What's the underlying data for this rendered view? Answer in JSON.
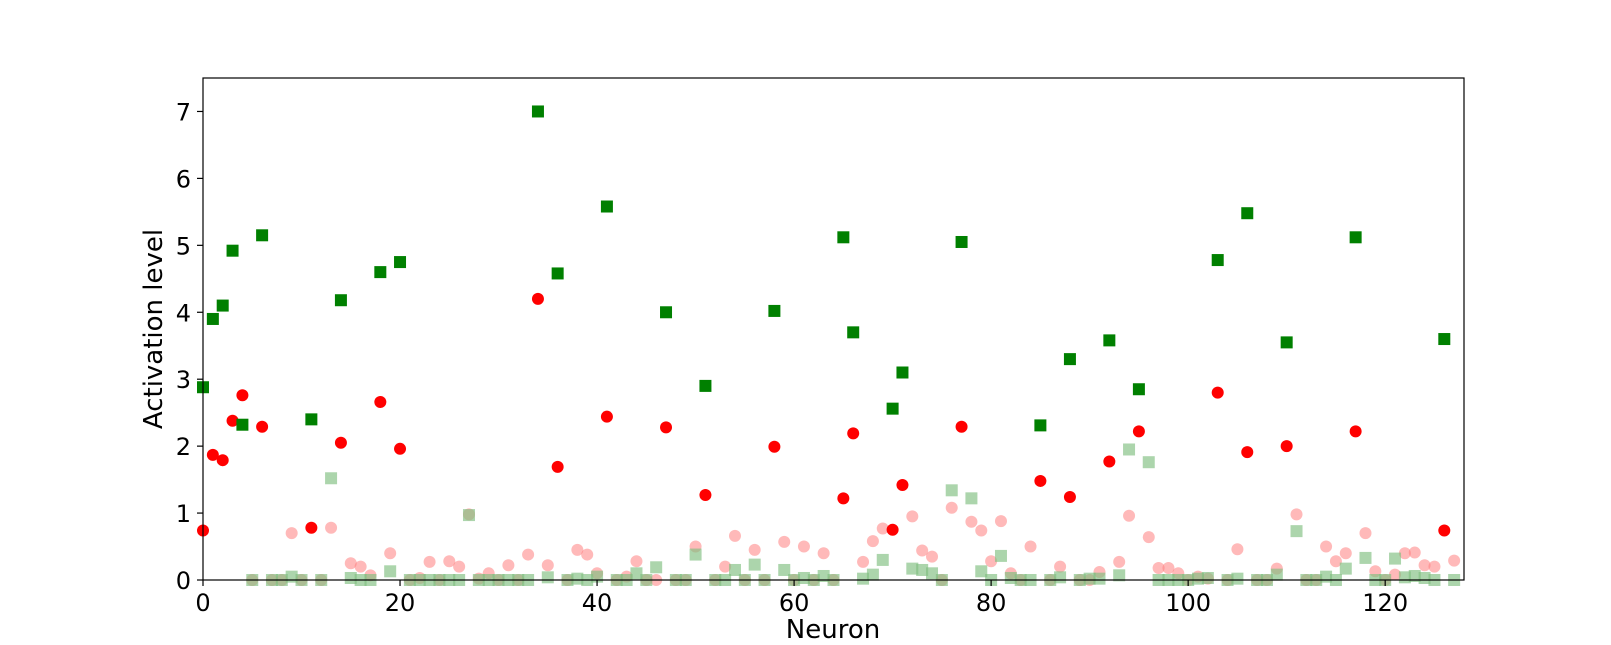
{
  "chart_data": {
    "type": "scatter",
    "title": "",
    "xlabel": "Neuron",
    "ylabel": "Activation level",
    "xlim": [
      0,
      128
    ],
    "ylim": [
      0,
      7.5
    ],
    "xticks": [
      0,
      20,
      40,
      60,
      80,
      100,
      120
    ],
    "yticks": [
      0,
      1,
      2,
      3,
      4,
      5,
      6,
      7
    ],
    "grid": false,
    "series": [
      {
        "marker": "square",
        "color": "#008000",
        "opacity": 1.0,
        "points": [
          [
            0,
            2.88
          ],
          [
            1,
            3.9
          ],
          [
            2,
            4.1
          ],
          [
            3,
            4.92
          ],
          [
            4,
            2.32
          ],
          [
            6,
            5.15
          ],
          [
            11,
            2.4
          ],
          [
            14,
            4.18
          ],
          [
            18,
            4.6
          ],
          [
            20,
            4.75
          ],
          [
            34,
            7.0
          ],
          [
            36,
            4.58
          ],
          [
            41,
            5.58
          ],
          [
            47,
            4.0
          ],
          [
            51,
            2.9
          ],
          [
            58,
            4.02
          ],
          [
            65,
            5.12
          ],
          [
            66,
            3.7
          ],
          [
            70,
            2.56
          ],
          [
            71,
            3.1
          ],
          [
            77,
            5.05
          ],
          [
            85,
            2.31
          ],
          [
            88,
            3.3
          ],
          [
            92,
            3.58
          ],
          [
            95,
            2.85
          ],
          [
            103,
            4.78
          ],
          [
            106,
            5.48
          ],
          [
            110,
            3.55
          ],
          [
            117,
            5.12
          ],
          [
            126,
            3.6
          ]
        ]
      },
      {
        "marker": "circle",
        "color": "#ff0000",
        "opacity": 1.0,
        "points": [
          [
            0,
            0.74
          ],
          [
            1,
            1.87
          ],
          [
            2,
            1.79
          ],
          [
            3,
            2.38
          ],
          [
            4,
            2.76
          ],
          [
            6,
            2.29
          ],
          [
            11,
            0.78
          ],
          [
            14,
            2.05
          ],
          [
            18,
            2.66
          ],
          [
            20,
            1.96
          ],
          [
            34,
            4.2
          ],
          [
            36,
            1.69
          ],
          [
            41,
            2.44
          ],
          [
            47,
            2.28
          ],
          [
            51,
            1.27
          ],
          [
            58,
            1.99
          ],
          [
            65,
            1.22
          ],
          [
            66,
            2.19
          ],
          [
            70,
            0.75
          ],
          [
            71,
            1.42
          ],
          [
            77,
            2.29
          ],
          [
            85,
            1.48
          ],
          [
            88,
            1.24
          ],
          [
            92,
            1.77
          ],
          [
            95,
            2.22
          ],
          [
            103,
            2.8
          ],
          [
            106,
            1.91
          ],
          [
            110,
            2.0
          ],
          [
            117,
            2.22
          ],
          [
            126,
            0.74
          ]
        ]
      },
      {
        "marker": "circle",
        "color": "#ff7f7f",
        "opacity": 0.55,
        "points": [
          [
            5,
            0.0
          ],
          [
            7,
            0.0
          ],
          [
            8,
            0.0
          ],
          [
            9,
            0.7
          ],
          [
            10,
            0.0
          ],
          [
            12,
            0.0
          ],
          [
            13,
            0.78
          ],
          [
            15,
            0.25
          ],
          [
            16,
            0.2
          ],
          [
            17,
            0.07
          ],
          [
            19,
            0.4
          ],
          [
            21,
            0.0
          ],
          [
            22,
            0.03
          ],
          [
            23,
            0.27
          ],
          [
            24,
            0.0
          ],
          [
            25,
            0.28
          ],
          [
            26,
            0.2
          ],
          [
            27,
            0.98
          ],
          [
            28,
            0.02
          ],
          [
            29,
            0.1
          ],
          [
            30,
            0.0
          ],
          [
            31,
            0.22
          ],
          [
            32,
            0.0
          ],
          [
            33,
            0.38
          ],
          [
            35,
            0.22
          ],
          [
            37,
            0.0
          ],
          [
            38,
            0.45
          ],
          [
            39,
            0.38
          ],
          [
            40,
            0.1
          ],
          [
            42,
            0.0
          ],
          [
            43,
            0.05
          ],
          [
            44,
            0.28
          ],
          [
            45,
            0.0
          ],
          [
            46,
            0.0
          ],
          [
            48,
            0.0
          ],
          [
            49,
            0.0
          ],
          [
            50,
            0.5
          ],
          [
            52,
            0.0
          ],
          [
            53,
            0.2
          ],
          [
            54,
            0.66
          ],
          [
            55,
            0.0
          ],
          [
            56,
            0.45
          ],
          [
            57,
            0.0
          ],
          [
            59,
            0.57
          ],
          [
            60,
            0.0
          ],
          [
            61,
            0.5
          ],
          [
            62,
            0.0
          ],
          [
            63,
            0.4
          ],
          [
            64,
            0.0
          ],
          [
            67,
            0.27
          ],
          [
            68,
            0.58
          ],
          [
            69,
            0.77
          ],
          [
            72,
            0.95
          ],
          [
            73,
            0.44
          ],
          [
            74,
            0.35
          ],
          [
            75,
            0.0
          ],
          [
            76,
            1.08
          ],
          [
            78,
            0.87
          ],
          [
            79,
            0.74
          ],
          [
            80,
            0.28
          ],
          [
            81,
            0.88
          ],
          [
            82,
            0.1
          ],
          [
            83,
            0.0
          ],
          [
            84,
            0.5
          ],
          [
            86,
            0.0
          ],
          [
            87,
            0.2
          ],
          [
            89,
            0.0
          ],
          [
            90,
            0.0
          ],
          [
            91,
            0.12
          ],
          [
            93,
            0.27
          ],
          [
            94,
            0.96
          ],
          [
            96,
            0.64
          ],
          [
            97,
            0.18
          ],
          [
            98,
            0.18
          ],
          [
            99,
            0.1
          ],
          [
            100,
            0.0
          ],
          [
            101,
            0.05
          ],
          [
            102,
            0.02
          ],
          [
            104,
            0.0
          ],
          [
            105,
            0.46
          ],
          [
            107,
            0.0
          ],
          [
            108,
            0.0
          ],
          [
            109,
            0.17
          ],
          [
            111,
            0.98
          ],
          [
            112,
            0.0
          ],
          [
            113,
            0.0
          ],
          [
            114,
            0.5
          ],
          [
            115,
            0.28
          ],
          [
            116,
            0.4
          ],
          [
            118,
            0.7
          ],
          [
            119,
            0.13
          ],
          [
            120,
            0.0
          ],
          [
            121,
            0.08
          ],
          [
            122,
            0.4
          ],
          [
            123,
            0.41
          ],
          [
            124,
            0.22
          ],
          [
            125,
            0.2
          ],
          [
            127,
            0.29
          ]
        ]
      },
      {
        "marker": "square",
        "color": "#7fbf7f",
        "opacity": 0.65,
        "points": [
          [
            5,
            0.0
          ],
          [
            7,
            0.0
          ],
          [
            8,
            0.0
          ],
          [
            9,
            0.05
          ],
          [
            10,
            0.0
          ],
          [
            12,
            0.0
          ],
          [
            13,
            1.52
          ],
          [
            15,
            0.03
          ],
          [
            16,
            0.0
          ],
          [
            17,
            0.0
          ],
          [
            19,
            0.13
          ],
          [
            21,
            0.0
          ],
          [
            22,
            0.0
          ],
          [
            23,
            0.0
          ],
          [
            24,
            0.0
          ],
          [
            25,
            0.0
          ],
          [
            26,
            0.0
          ],
          [
            27,
            0.97
          ],
          [
            28,
            0.0
          ],
          [
            29,
            0.0
          ],
          [
            30,
            0.0
          ],
          [
            31,
            0.0
          ],
          [
            32,
            0.0
          ],
          [
            33,
            0.0
          ],
          [
            35,
            0.04
          ],
          [
            37,
            0.0
          ],
          [
            38,
            0.02
          ],
          [
            39,
            0.0
          ],
          [
            40,
            0.05
          ],
          [
            42,
            0.0
          ],
          [
            43,
            0.0
          ],
          [
            44,
            0.1
          ],
          [
            45,
            0.0
          ],
          [
            46,
            0.19
          ],
          [
            48,
            0.0
          ],
          [
            49,
            0.0
          ],
          [
            50,
            0.38
          ],
          [
            52,
            0.0
          ],
          [
            53,
            0.0
          ],
          [
            54,
            0.15
          ],
          [
            55,
            0.0
          ],
          [
            56,
            0.23
          ],
          [
            57,
            0.0
          ],
          [
            59,
            0.15
          ],
          [
            60,
            0.0
          ],
          [
            61,
            0.03
          ],
          [
            62,
            0.0
          ],
          [
            63,
            0.06
          ],
          [
            64,
            0.0
          ],
          [
            67,
            0.02
          ],
          [
            68,
            0.08
          ],
          [
            69,
            0.3
          ],
          [
            72,
            0.17
          ],
          [
            73,
            0.15
          ],
          [
            74,
            0.1
          ],
          [
            75,
            0.0
          ],
          [
            76,
            1.34
          ],
          [
            78,
            1.22
          ],
          [
            79,
            0.13
          ],
          [
            80,
            0.0
          ],
          [
            81,
            0.36
          ],
          [
            82,
            0.03
          ],
          [
            83,
            0.0
          ],
          [
            84,
            0.0
          ],
          [
            86,
            0.0
          ],
          [
            87,
            0.04
          ],
          [
            89,
            0.0
          ],
          [
            90,
            0.02
          ],
          [
            91,
            0.02
          ],
          [
            93,
            0.07
          ],
          [
            94,
            1.95
          ],
          [
            96,
            1.76
          ],
          [
            97,
            0.0
          ],
          [
            98,
            0.0
          ],
          [
            99,
            0.0
          ],
          [
            100,
            0.0
          ],
          [
            101,
            0.02
          ],
          [
            102,
            0.03
          ],
          [
            104,
            0.0
          ],
          [
            105,
            0.02
          ],
          [
            107,
            0.0
          ],
          [
            108,
            0.0
          ],
          [
            109,
            0.08
          ],
          [
            111,
            0.73
          ],
          [
            112,
            0.0
          ],
          [
            113,
            0.0
          ],
          [
            114,
            0.05
          ],
          [
            115,
            0.0
          ],
          [
            116,
            0.17
          ],
          [
            118,
            0.33
          ],
          [
            119,
            0.0
          ],
          [
            120,
            0.0
          ],
          [
            121,
            0.32
          ],
          [
            122,
            0.04
          ],
          [
            123,
            0.06
          ],
          [
            124,
            0.03
          ],
          [
            125,
            0.0
          ],
          [
            127,
            0.0
          ]
        ]
      }
    ]
  }
}
